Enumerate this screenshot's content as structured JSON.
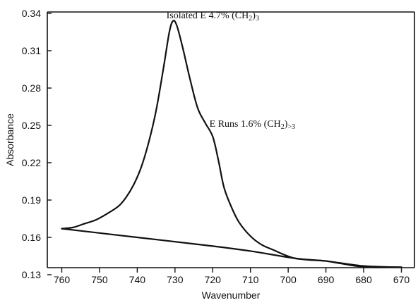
{
  "chart_data": {
    "type": "line",
    "xlabel": "Wavenumber",
    "ylabel": "Absorbance",
    "xlim": [
      760,
      670
    ],
    "ylim": [
      0.13,
      0.34
    ],
    "x_ticks": [
      760,
      750,
      740,
      730,
      720,
      710,
      700,
      690,
      680,
      670
    ],
    "y_ticks": [
      0.13,
      0.16,
      0.19,
      0.22,
      0.25,
      0.28,
      0.31,
      0.34
    ],
    "x_reversed": true,
    "grid": false,
    "legend": false,
    "series": [
      {
        "values": [
          [
            760,
            0.167
          ],
          [
            757,
            0.168
          ],
          [
            754,
            0.171
          ],
          [
            751,
            0.174
          ],
          [
            748,
            0.179
          ],
          [
            745,
            0.185
          ],
          [
            743,
            0.192
          ],
          [
            741,
            0.202
          ],
          [
            739,
            0.216
          ],
          [
            737,
            0.236
          ],
          [
            735,
            0.262
          ],
          [
            733,
            0.297
          ],
          [
            731.5,
            0.325
          ],
          [
            730.5,
            0.334
          ],
          [
            729.5,
            0.33
          ],
          [
            728,
            0.313
          ],
          [
            726,
            0.287
          ],
          [
            724,
            0.264
          ],
          [
            722,
            0.252
          ],
          [
            720,
            0.241
          ],
          [
            718.5,
            0.222
          ],
          [
            717,
            0.2
          ],
          [
            715,
            0.184
          ],
          [
            713,
            0.172
          ],
          [
            710,
            0.161
          ],
          [
            707,
            0.154
          ],
          [
            704,
            0.15
          ],
          [
            701,
            0.146
          ],
          [
            698,
            0.143
          ],
          [
            694,
            0.142
          ],
          [
            690,
            0.141
          ],
          [
            686,
            0.139
          ],
          [
            682,
            0.137
          ],
          [
            678,
            0.136
          ],
          [
            674,
            0.136
          ],
          [
            670,
            0.136
          ]
        ]
      },
      {
        "values": [
          [
            760,
            0.167
          ],
          [
            740,
            0.16
          ],
          [
            720,
            0.153
          ],
          [
            710,
            0.149
          ],
          [
            700,
            0.144
          ],
          [
            695,
            0.142
          ],
          [
            690,
            0.141
          ],
          [
            680,
            0.137
          ],
          [
            670,
            0.136
          ]
        ]
      }
    ],
    "annotations": [
      {
        "text": "Isolated E 4.7% (CH",
        "sub": "2",
        "suffix": ")",
        "sub2": "3",
        "x": 720,
        "y": 0.336
      },
      {
        "text": "E Runs 1.6% (CH",
        "sub": "2",
        "suffix": ")",
        "sub2": ">3",
        "x": 709.5,
        "y": 0.249
      }
    ]
  }
}
